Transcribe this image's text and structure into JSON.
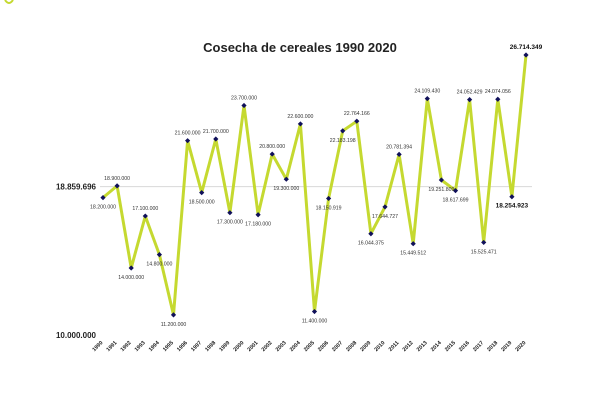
{
  "chart_data": {
    "type": "line",
    "title": "Cosecha de cereales 1990 2020",
    "xlabel": "",
    "ylabel": "",
    "ylim": [
      10000000,
      27500000
    ],
    "grid": false,
    "legend": "none",
    "line_color": "#c5d930",
    "marker_color": "#10105a",
    "reference_line": {
      "value": 18859696,
      "label": "18.859.696"
    },
    "y_tick_labels": [
      {
        "value": 10000000,
        "label": "10.000.000"
      }
    ],
    "x": [
      "1990",
      "1991",
      "1992",
      "1993",
      "1994",
      "1995",
      "1996",
      "1997",
      "1998",
      "1999",
      "2000",
      "2001",
      "2002",
      "2003",
      "2004",
      "2005",
      "2006",
      "2007",
      "2008",
      "2009",
      "2010",
      "2011",
      "2012",
      "2013",
      "2014",
      "2015",
      "2016",
      "2017",
      "2018",
      "2019",
      "2020"
    ],
    "series": [
      {
        "values": [
          18200000,
          18900000,
          14000000,
          17100000,
          14800000,
          11200000,
          21600000,
          18500000,
          21700000,
          17300000,
          23700000,
          17180000,
          20800000,
          19300000,
          22600000,
          11400000,
          18150919,
          22183198,
          22764166,
          16044375,
          17644727,
          20781394,
          15449512,
          24109430,
          19251809,
          18617699,
          24052429,
          15525471,
          24074056,
          18254923,
          26714349
        ],
        "labels": [
          "18.200.000",
          "18.900.000",
          "14.000.000",
          "17.100.000",
          "14.800.000",
          "11.200.000",
          "21.600.000",
          "18.500.000",
          "21.700.000",
          "17.300.000",
          "23.700.000",
          "17.180.000",
          "20.800.000",
          "19.300.000",
          "22.600.000",
          "11.400.000",
          "18.150.919",
          "22.183.198",
          "22.764.166",
          "16.044.375",
          "17.644.727",
          "20.781.394",
          "15.449.512",
          "24.109.430",
          "19.251.809",
          "18.617.699",
          "24.052.429",
          "15.525.471",
          "24.074.056",
          "18.254.923",
          "26.714.349"
        ],
        "bold_labels": [
          29,
          30
        ]
      }
    ]
  }
}
